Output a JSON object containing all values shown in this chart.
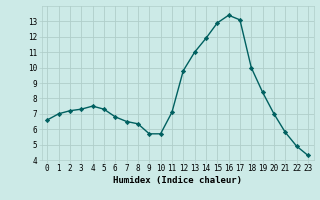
{
  "x": [
    0,
    1,
    2,
    3,
    4,
    5,
    6,
    7,
    8,
    9,
    10,
    11,
    12,
    13,
    14,
    15,
    16,
    17,
    18,
    19,
    20,
    21,
    22,
    23
  ],
  "y": [
    6.6,
    7.0,
    7.2,
    7.3,
    7.5,
    7.3,
    6.8,
    6.5,
    6.35,
    5.7,
    5.7,
    7.1,
    9.8,
    11.0,
    11.9,
    12.9,
    13.4,
    13.1,
    10.0,
    8.4,
    7.0,
    5.8,
    4.9,
    4.3
  ],
  "xlabel": "Humidex (Indice chaleur)",
  "xlim": [
    -0.5,
    23.5
  ],
  "ylim": [
    4,
    14
  ],
  "yticks": [
    4,
    5,
    6,
    7,
    8,
    9,
    10,
    11,
    12,
    13
  ],
  "xticks": [
    0,
    1,
    2,
    3,
    4,
    5,
    6,
    7,
    8,
    9,
    10,
    11,
    12,
    13,
    14,
    15,
    16,
    17,
    18,
    19,
    20,
    21,
    22,
    23
  ],
  "line_color": "#006060",
  "marker": "D",
  "marker_size": 2.2,
  "bg_color": "#cceae7",
  "grid_color": "#b0ceca",
  "label_fontsize": 6.5,
  "tick_fontsize": 5.5
}
